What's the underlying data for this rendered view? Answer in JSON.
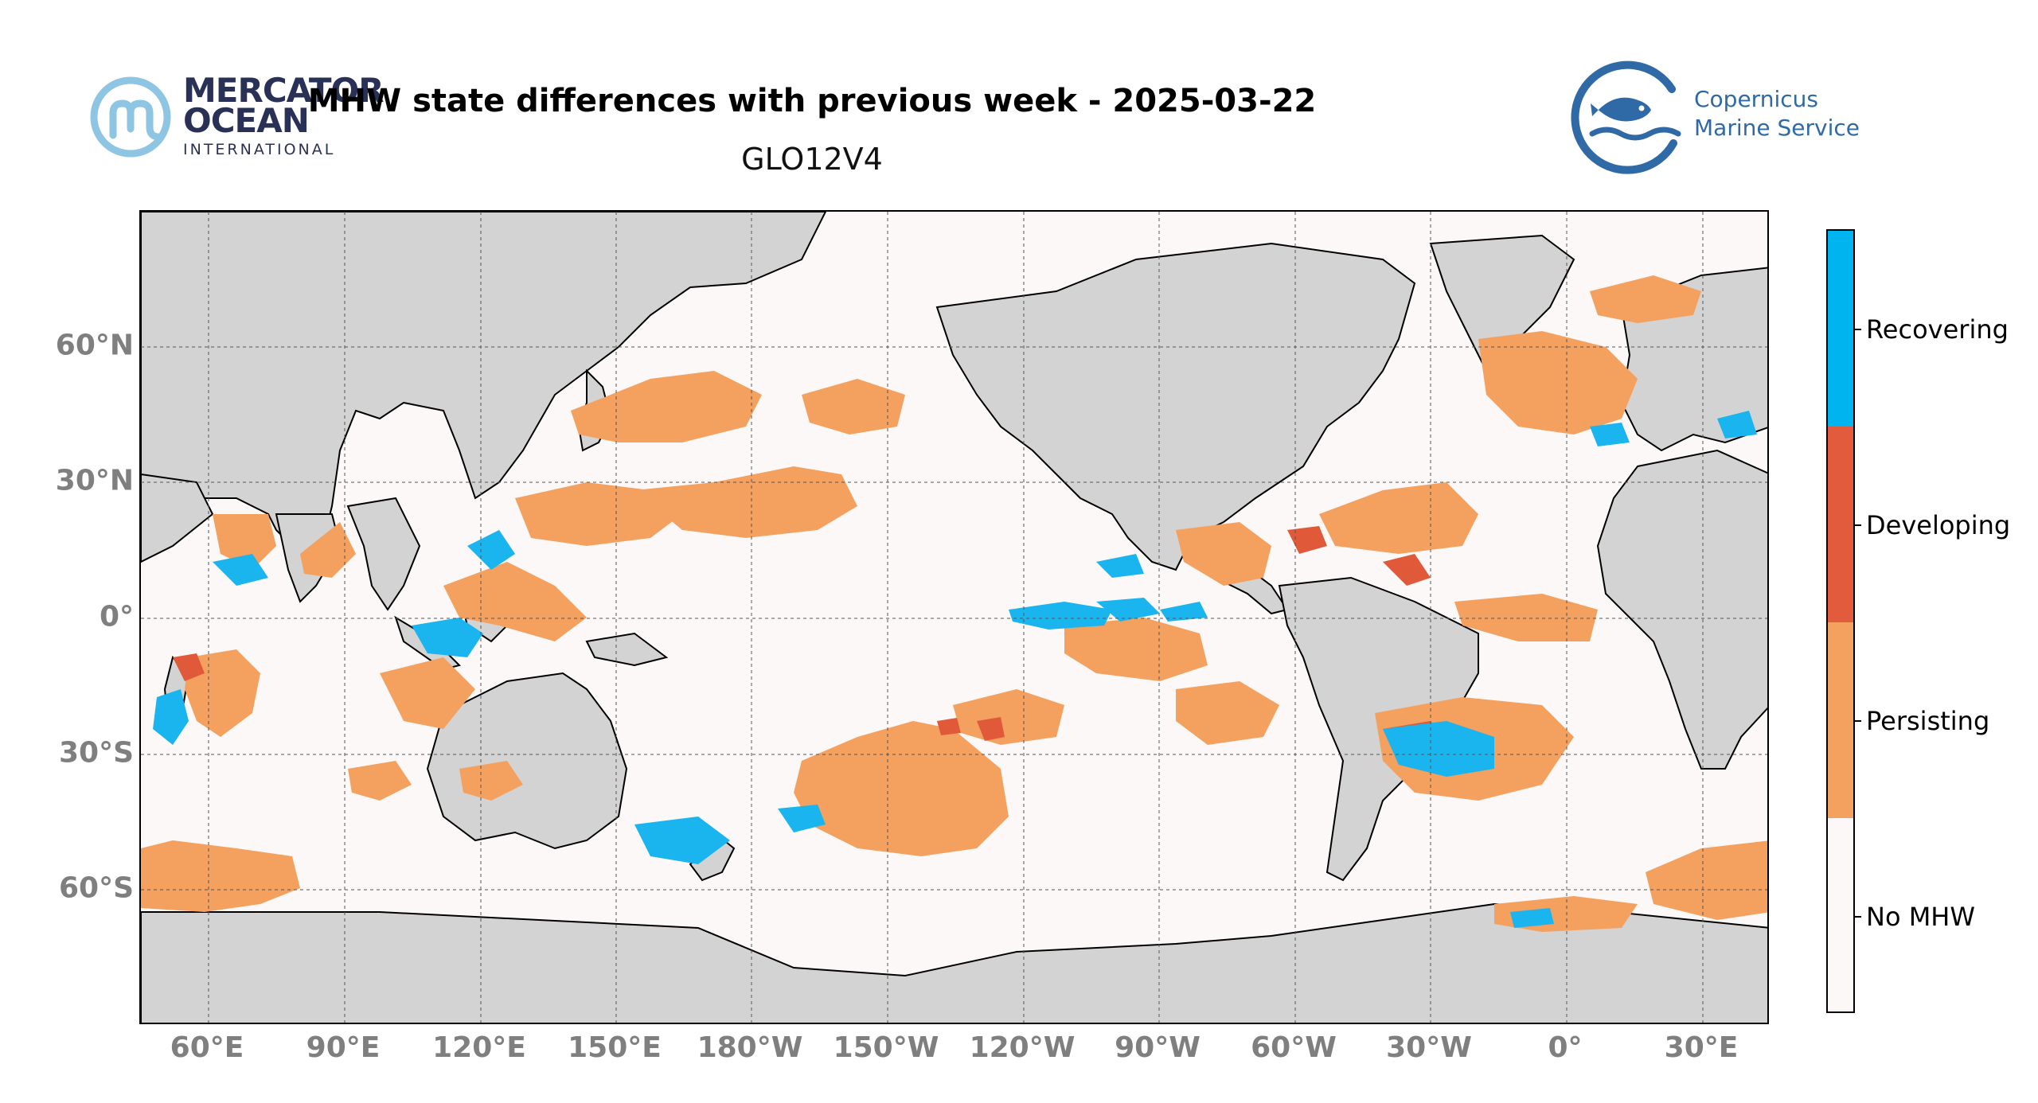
{
  "header": {
    "title": "MHW state differences with previous week - 2025-03-22",
    "subtitle": "GLO12V4"
  },
  "logos": {
    "left": {
      "line1": "MERCATOR",
      "line2": "OCEAN",
      "line3": "INTERNATIONAL"
    },
    "right": {
      "line1": "Copernicus",
      "line2": "Marine Service"
    }
  },
  "map": {
    "lat_labels": [
      "60°N",
      "30°N",
      "0°",
      "30°S",
      "60°S"
    ],
    "lon_labels": [
      "60°E",
      "90°E",
      "120°E",
      "150°E",
      "180°W",
      "150°W",
      "120°W",
      "90°W",
      "60°W",
      "30°W",
      "0°",
      "30°E"
    ],
    "colors": {
      "ocean": "#fbf8f7",
      "land": "#d3d3d3",
      "persisting": "#f4a05e",
      "developing": "#e05a3a",
      "recovering": "#1ab4ee",
      "no_mhw": "#fbf8f7"
    }
  },
  "colorbar": {
    "categories": [
      {
        "label": "Recovering",
        "color": "#00b4f0"
      },
      {
        "label": "Developing",
        "color": "#e25b3c"
      },
      {
        "label": "Persisting",
        "color": "#f4a05e"
      },
      {
        "label": "No MHW",
        "color": "#fbf8f7"
      }
    ]
  }
}
